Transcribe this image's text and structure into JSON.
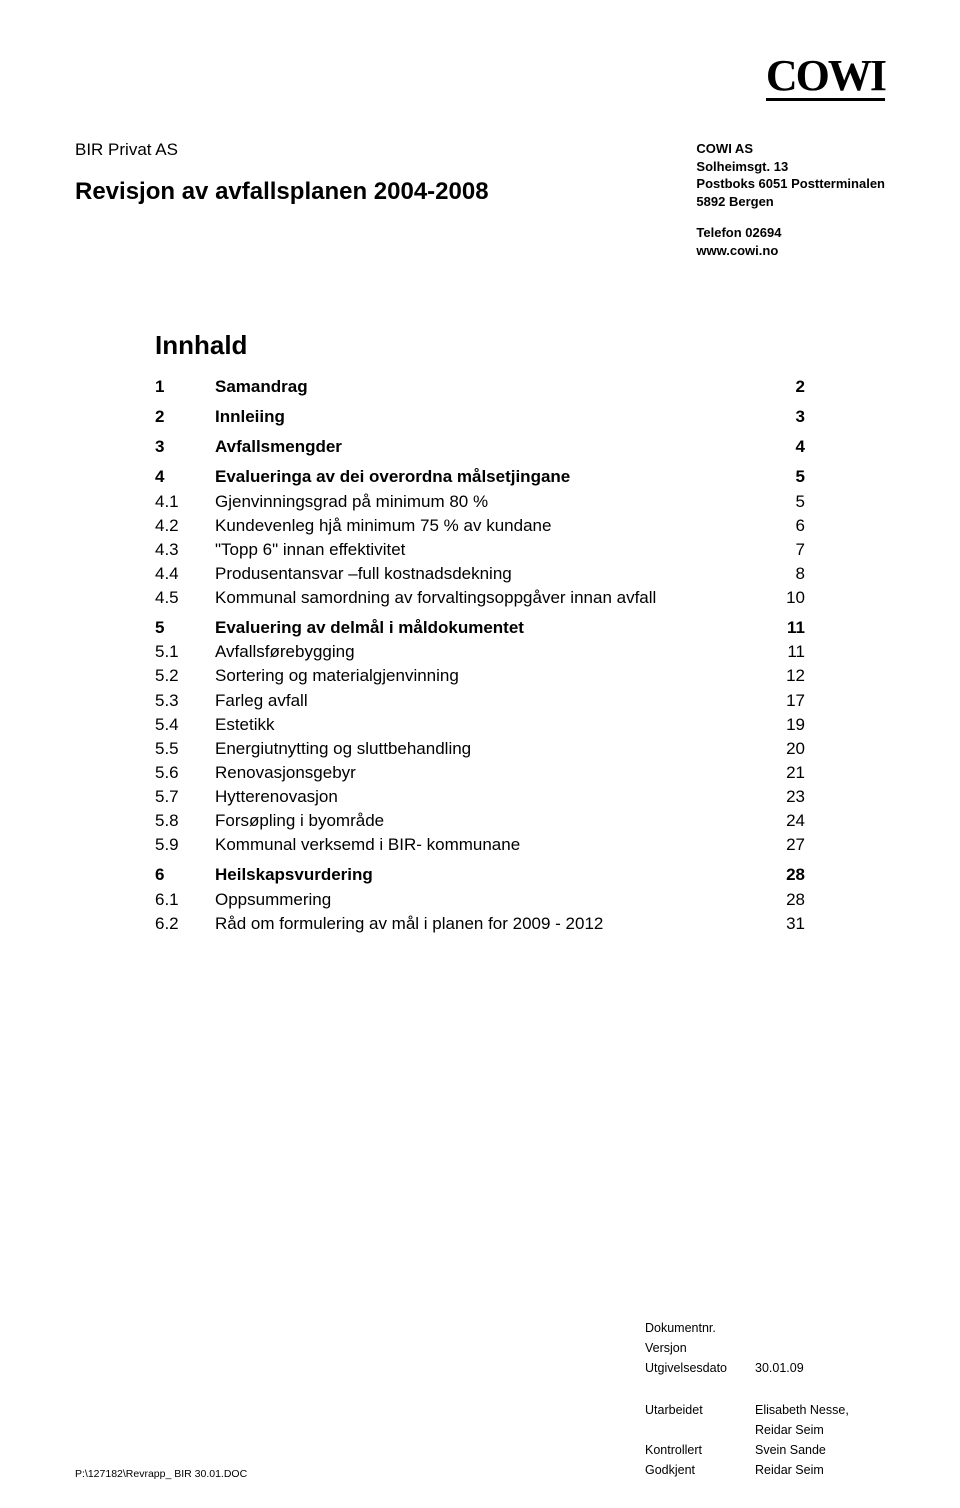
{
  "logo": "COWI",
  "header": {
    "client": "BIR Privat AS",
    "title": "Revisjon av avfallsplanen 2004-2008",
    "company": "COWI AS",
    "addr1": "Solheimsgt. 13",
    "addr2": "Postboks 6051 Postterminalen",
    "addr3": "5892  Bergen",
    "phone": "Telefon 02694",
    "web": "www.cowi.no"
  },
  "toc": {
    "title": "Innhald",
    "groups": [
      {
        "rows": [
          {
            "num": "1",
            "text": "Samandrag",
            "page": "2",
            "bold": true
          }
        ]
      },
      {
        "rows": [
          {
            "num": "2",
            "text": "Innleiing",
            "page": "3",
            "bold": true
          }
        ]
      },
      {
        "rows": [
          {
            "num": "3",
            "text": "Avfallsmengder",
            "page": "4",
            "bold": true
          }
        ]
      },
      {
        "rows": [
          {
            "num": "4",
            "text": "Evalueringa av dei overordna målsetjingane",
            "page": "5",
            "bold": true
          },
          {
            "num": "4.1",
            "text": "Gjenvinningsgrad på minimum 80 %",
            "page": "5",
            "bold": false
          },
          {
            "num": "4.2",
            "text": "Kundevenleg hjå minimum 75 % av kundane",
            "page": "6",
            "bold": false
          },
          {
            "num": "4.3",
            "text": "\"Topp 6\" innan effektivitet",
            "page": "7",
            "bold": false
          },
          {
            "num": "4.4",
            "text": "Produsentansvar –full kostnadsdekning",
            "page": "8",
            "bold": false
          },
          {
            "num": "4.5",
            "text": "Kommunal samordning av forvaltingsoppgåver innan avfall",
            "page": "10",
            "bold": false
          }
        ]
      },
      {
        "rows": [
          {
            "num": "5",
            "text": "Evaluering av delmål i måldokumentet",
            "page": "11",
            "bold": true
          },
          {
            "num": "5.1",
            "text": "Avfallsførebygging",
            "page": "11",
            "bold": false
          },
          {
            "num": "5.2",
            "text": "Sortering og materialgjenvinning",
            "page": "12",
            "bold": false
          },
          {
            "num": "5.3",
            "text": "Farleg avfall",
            "page": "17",
            "bold": false
          },
          {
            "num": "5.4",
            "text": "Estetikk",
            "page": "19",
            "bold": false
          },
          {
            "num": "5.5",
            "text": "Energiutnytting og sluttbehandling",
            "page": "20",
            "bold": false
          },
          {
            "num": "5.6",
            "text": "Renovasjonsgebyr",
            "page": "21",
            "bold": false
          },
          {
            "num": "5.7",
            "text": "Hytterenovasjon",
            "page": "23",
            "bold": false
          },
          {
            "num": "5.8",
            "text": "Forsøpling i byområde",
            "page": "24",
            "bold": false
          },
          {
            "num": "5.9",
            "text": "Kommunal verksemd i BIR- kommunane",
            "page": "27",
            "bold": false
          }
        ]
      },
      {
        "rows": [
          {
            "num": "6",
            "text": "Heilskapsvurdering",
            "page": "28",
            "bold": true
          },
          {
            "num": "6.1",
            "text": "Oppsummering",
            "page": "28",
            "bold": false
          },
          {
            "num": "6.2",
            "text": "Råd om formulering av mål i planen for 2009 - 2012",
            "page": "31",
            "bold": false
          }
        ]
      }
    ]
  },
  "meta1": [
    {
      "label": "Dokumentnr.",
      "value": ""
    },
    {
      "label": "Versjon",
      "value": ""
    },
    {
      "label": "Utgivelsesdato",
      "value": "30.01.09"
    }
  ],
  "meta2": [
    {
      "label": "Utarbeidet",
      "value": "Elisabeth Nesse,"
    },
    {
      "label": "",
      "value": "Reidar Seim"
    },
    {
      "label": "Kontrollert",
      "value": "Svein Sande"
    },
    {
      "label": "Godkjent",
      "value": "Reidar Seim"
    }
  ],
  "filepath": "P:\\127182\\Revrapp_ BIR 30.01.DOC"
}
